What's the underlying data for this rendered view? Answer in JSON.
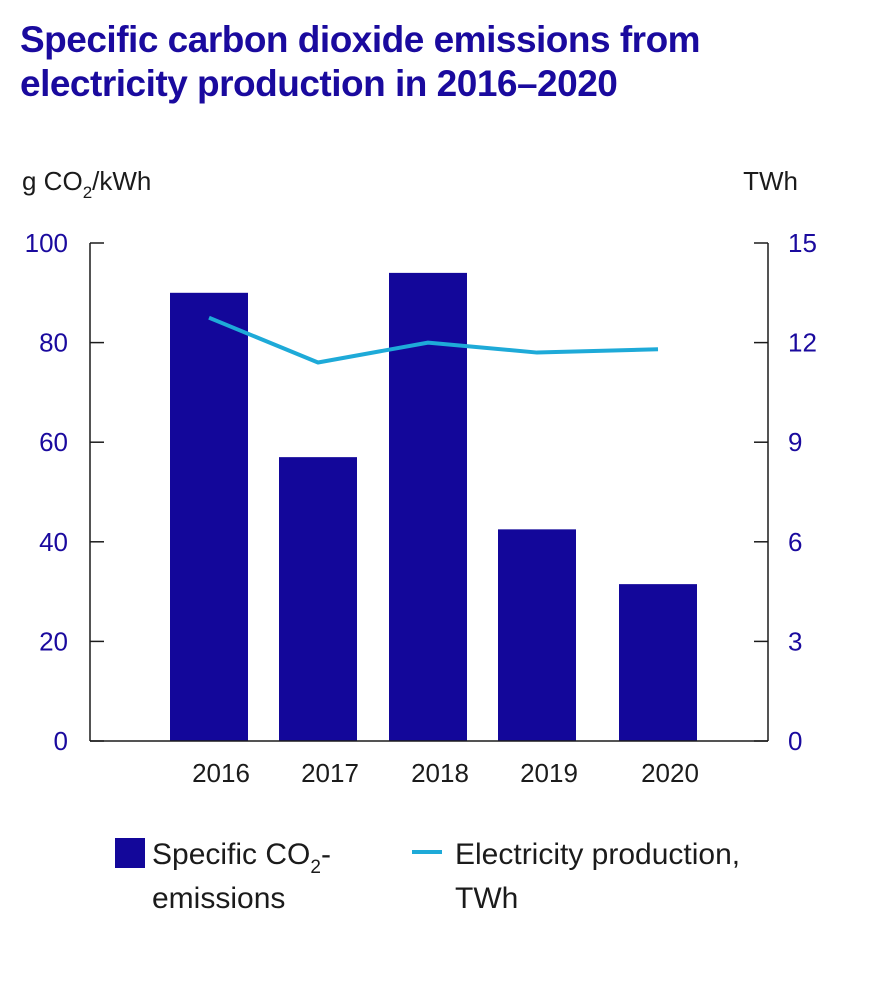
{
  "title": {
    "line1": "Specific carbon dioxide emissions from",
    "line2": "electricity production in 2016–2020"
  },
  "colors": {
    "title": "#1a0a9e",
    "bar": "#13079a",
    "line": "#1eaad8",
    "axis_ticks": "#1a0a9e",
    "axis_line": "#1b1b1b"
  },
  "chart_data": {
    "type": "bar",
    "categories": [
      "2016",
      "2017",
      "2018",
      "2019",
      "2020"
    ],
    "left_axis": {
      "label_main": "g CO",
      "label_sub": "2",
      "label_tail": "/kWh",
      "ylim": [
        0,
        100
      ],
      "ticks": [
        "0",
        "20",
        "40",
        "60",
        "80",
        "100"
      ]
    },
    "right_axis": {
      "label": "TWh",
      "ylim": [
        0,
        15
      ],
      "ticks": [
        "0",
        "3",
        "6",
        "9",
        "12",
        "15"
      ]
    },
    "series": [
      {
        "name": "Specific CO2-emissions",
        "type": "bar",
        "axis": "left",
        "values": [
          90,
          57,
          94,
          42.5,
          31.5
        ]
      },
      {
        "name": "Electricity production, TWh",
        "type": "line",
        "axis": "right",
        "values": [
          12.75,
          11.4,
          12.0,
          11.7,
          11.8
        ]
      }
    ],
    "legend": {
      "placement": "bottom",
      "bar_label": {
        "main": "Specific CO",
        "sub": "2",
        "tail": "-",
        "line2": "emissions"
      },
      "line_label": {
        "line1": "Electricity production,",
        "line2": "TWh"
      }
    },
    "grid": false
  }
}
